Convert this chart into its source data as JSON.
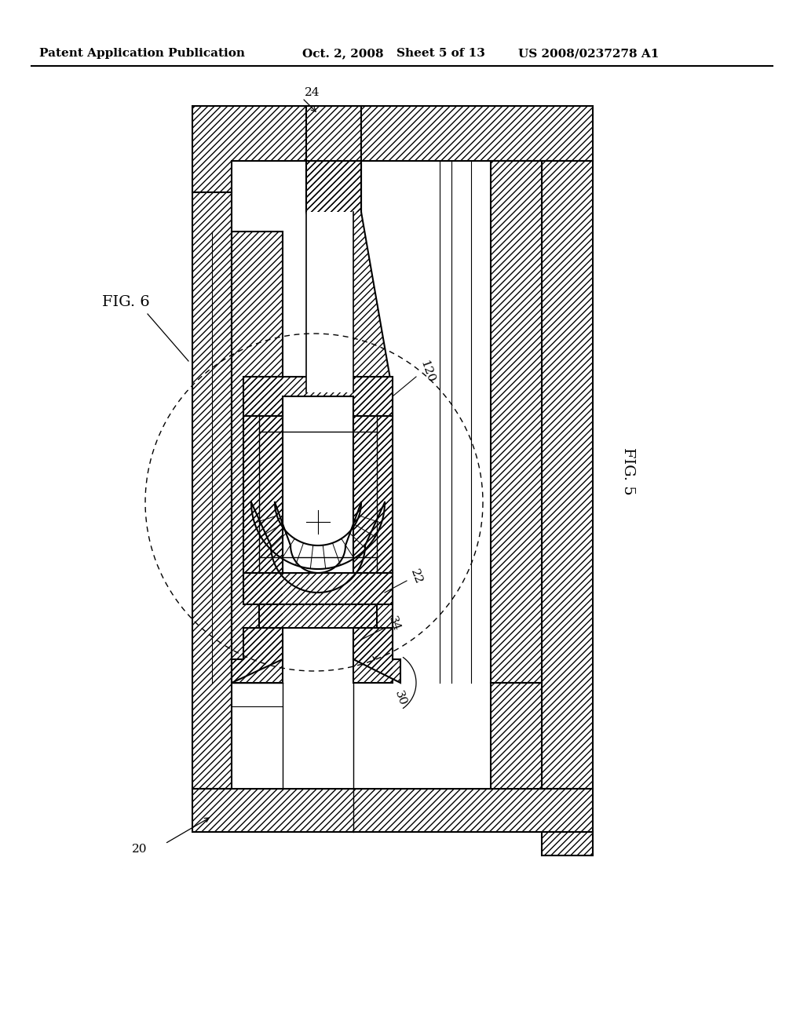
{
  "background_color": "#ffffff",
  "header_text": "Patent Application Publication",
  "header_date": "Oct. 2, 2008",
  "header_sheet": "Sheet 5 of 13",
  "header_patent": "US 2008/0237278 A1",
  "fig5_label": "FIG. 5",
  "fig6_label": "FIG. 6",
  "label_fontsize": 11,
  "header_fontsize": 11,
  "fig_label_fontsize": 14
}
